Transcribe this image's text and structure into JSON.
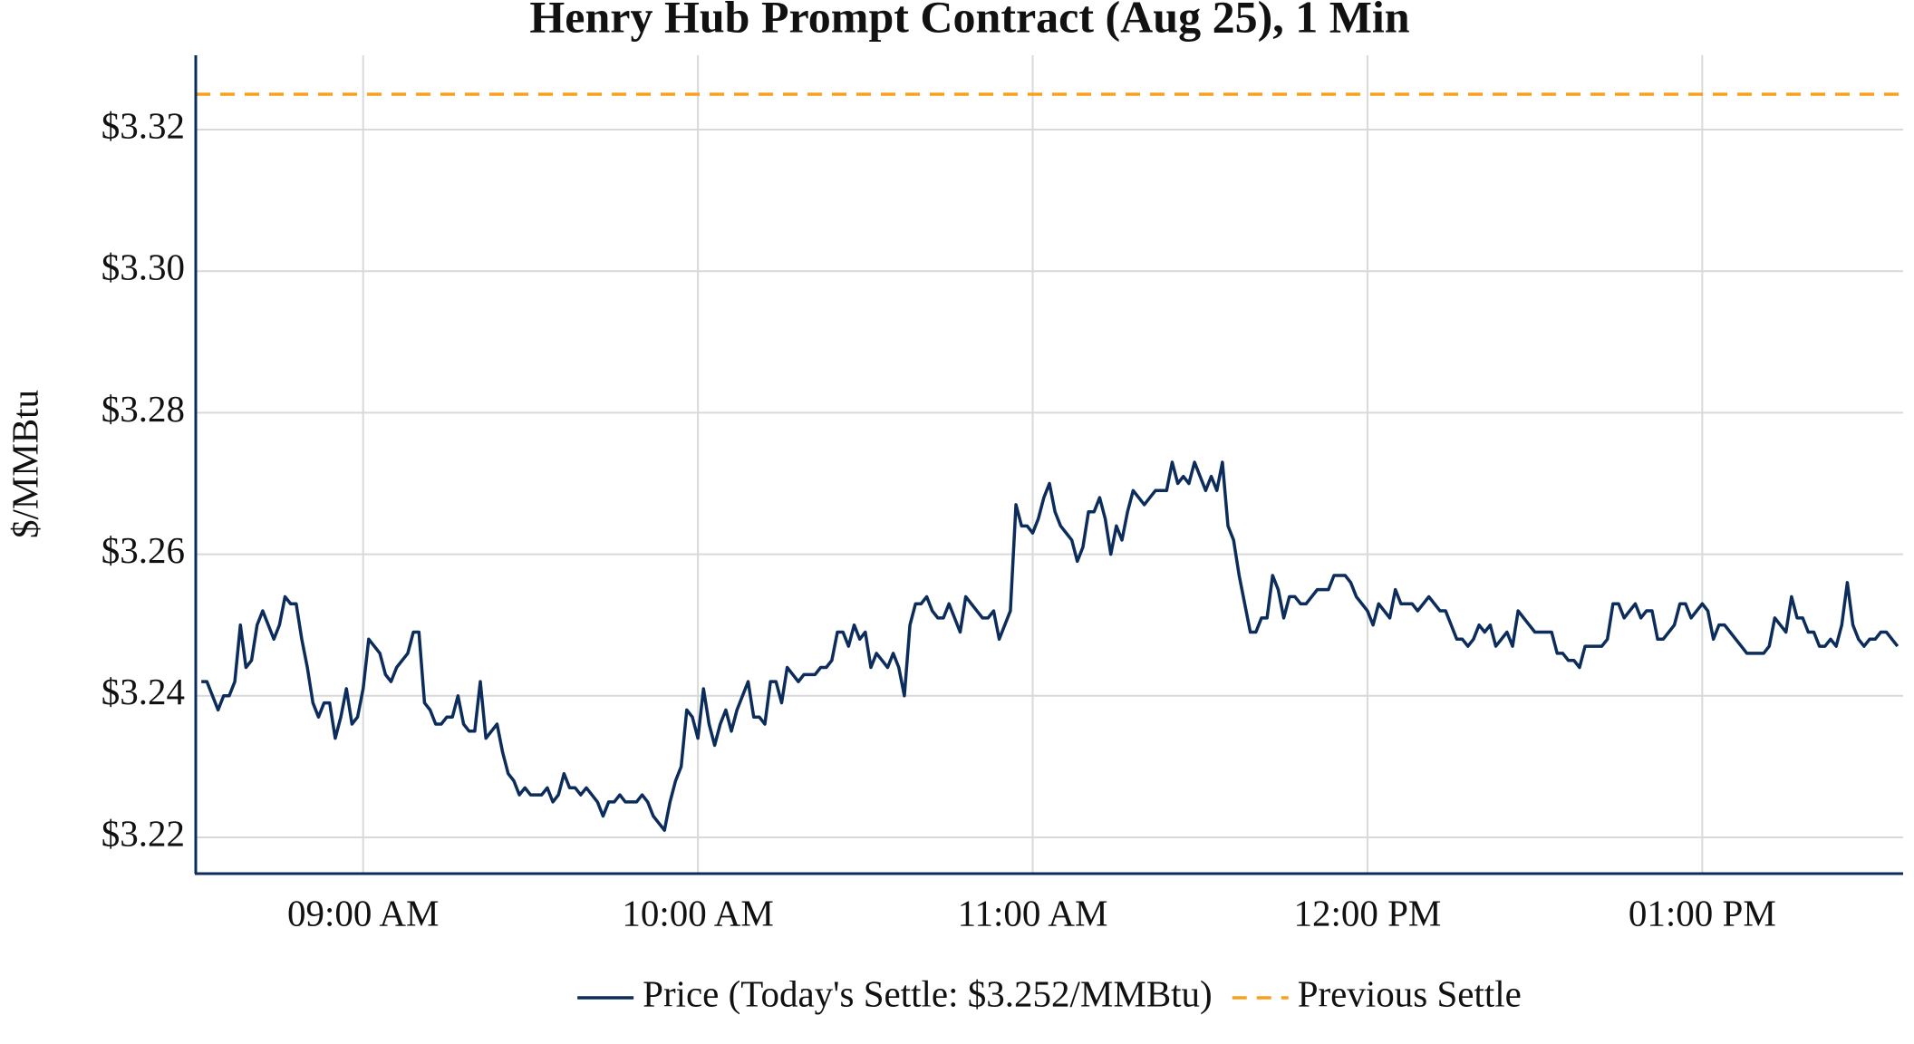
{
  "chart_data": {
    "type": "line",
    "title": "Henry Hub Prompt Contract (Aug 25), 1 Min",
    "y_label": "$/MMBtu",
    "grid": true,
    "ylim": [
      3.215,
      3.3305
    ],
    "yticks": [
      {
        "value": 3.22,
        "label": "$3.22"
      },
      {
        "value": 3.24,
        "label": "$3.24"
      },
      {
        "value": 3.26,
        "label": "$3.26"
      },
      {
        "value": 3.28,
        "label": "$3.28"
      },
      {
        "value": 3.3,
        "label": "$3.30"
      },
      {
        "value": 3.32,
        "label": "$3.32"
      }
    ],
    "xlim": [
      "08:30 AM",
      "01:36 PM"
    ],
    "xticks": [
      "09:00 AM",
      "10:00 AM",
      "11:00 AM",
      "12:00 PM",
      "01:00 PM"
    ],
    "x": [
      "08:31 AM",
      "08:32 AM",
      "08:33 AM",
      "08:34 AM",
      "08:35 AM",
      "08:36 AM",
      "08:37 AM",
      "08:38 AM",
      "08:39 AM",
      "08:40 AM",
      "08:41 AM",
      "08:42 AM",
      "08:43 AM",
      "08:44 AM",
      "08:45 AM",
      "08:46 AM",
      "08:47 AM",
      "08:48 AM",
      "08:49 AM",
      "08:50 AM",
      "08:51 AM",
      "08:52 AM",
      "08:53 AM",
      "08:54 AM",
      "08:55 AM",
      "08:56 AM",
      "08:57 AM",
      "08:58 AM",
      "08:59 AM",
      "09:00 AM",
      "09:01 AM",
      "09:02 AM",
      "09:03 AM",
      "09:04 AM",
      "09:05 AM",
      "09:06 AM",
      "09:07 AM",
      "09:08 AM",
      "09:09 AM",
      "09:10 AM",
      "09:11 AM",
      "09:12 AM",
      "09:13 AM",
      "09:14 AM",
      "09:15 AM",
      "09:16 AM",
      "09:17 AM",
      "09:18 AM",
      "09:19 AM",
      "09:20 AM",
      "09:21 AM",
      "09:22 AM",
      "09:23 AM",
      "09:24 AM",
      "09:25 AM",
      "09:26 AM",
      "09:27 AM",
      "09:28 AM",
      "09:29 AM",
      "09:30 AM",
      "09:31 AM",
      "09:32 AM",
      "09:33 AM",
      "09:34 AM",
      "09:35 AM",
      "09:36 AM",
      "09:37 AM",
      "09:38 AM",
      "09:39 AM",
      "09:40 AM",
      "09:41 AM",
      "09:42 AM",
      "09:43 AM",
      "09:44 AM",
      "09:45 AM",
      "09:46 AM",
      "09:47 AM",
      "09:48 AM",
      "09:49 AM",
      "09:50 AM",
      "09:51 AM",
      "09:52 AM",
      "09:53 AM",
      "09:54 AM",
      "09:55 AM",
      "09:56 AM",
      "09:57 AM",
      "09:58 AM",
      "09:59 AM",
      "10:00 AM",
      "10:01 AM",
      "10:02 AM",
      "10:03 AM",
      "10:04 AM",
      "10:05 AM",
      "10:06 AM",
      "10:07 AM",
      "10:08 AM",
      "10:09 AM",
      "10:10 AM",
      "10:11 AM",
      "10:12 AM",
      "10:13 AM",
      "10:14 AM",
      "10:15 AM",
      "10:16 AM",
      "10:17 AM",
      "10:18 AM",
      "10:19 AM",
      "10:20 AM",
      "10:21 AM",
      "10:22 AM",
      "10:23 AM",
      "10:24 AM",
      "10:25 AM",
      "10:26 AM",
      "10:27 AM",
      "10:28 AM",
      "10:29 AM",
      "10:30 AM",
      "10:31 AM",
      "10:32 AM",
      "10:33 AM",
      "10:34 AM",
      "10:35 AM",
      "10:36 AM",
      "10:37 AM",
      "10:38 AM",
      "10:39 AM",
      "10:40 AM",
      "10:41 AM",
      "10:42 AM",
      "10:43 AM",
      "10:44 AM",
      "10:45 AM",
      "10:46 AM",
      "10:47 AM",
      "10:48 AM",
      "10:49 AM",
      "10:50 AM",
      "10:51 AM",
      "10:52 AM",
      "10:53 AM",
      "10:54 AM",
      "10:55 AM",
      "10:56 AM",
      "10:57 AM",
      "10:58 AM",
      "10:59 AM",
      "11:00 AM",
      "11:01 AM",
      "11:02 AM",
      "11:03 AM",
      "11:04 AM",
      "11:05 AM",
      "11:06 AM",
      "11:07 AM",
      "11:08 AM",
      "11:09 AM",
      "11:10 AM",
      "11:11 AM",
      "11:12 AM",
      "11:13 AM",
      "11:14 AM",
      "11:15 AM",
      "11:16 AM",
      "11:17 AM",
      "11:18 AM",
      "11:19 AM",
      "11:20 AM",
      "11:21 AM",
      "11:22 AM",
      "11:23 AM",
      "11:24 AM",
      "11:25 AM",
      "11:26 AM",
      "11:27 AM",
      "11:28 AM",
      "11:29 AM",
      "11:30 AM",
      "11:31 AM",
      "11:32 AM",
      "11:33 AM",
      "11:34 AM",
      "11:35 AM",
      "11:36 AM",
      "11:37 AM",
      "11:38 AM",
      "11:39 AM",
      "11:40 AM",
      "11:41 AM",
      "11:42 AM",
      "11:43 AM",
      "11:44 AM",
      "11:45 AM",
      "11:46 AM",
      "11:47 AM",
      "11:48 AM",
      "11:49 AM",
      "11:50 AM",
      "11:51 AM",
      "11:52 AM",
      "11:53 AM",
      "11:54 AM",
      "11:55 AM",
      "11:56 AM",
      "11:57 AM",
      "11:58 AM",
      "11:59 AM",
      "12:00 PM",
      "12:01 PM",
      "12:02 PM",
      "12:03 PM",
      "12:04 PM",
      "12:05 PM",
      "12:06 PM",
      "12:07 PM",
      "12:08 PM",
      "12:09 PM",
      "12:10 PM",
      "12:11 PM",
      "12:12 PM",
      "12:13 PM",
      "12:14 PM",
      "12:15 PM",
      "12:16 PM",
      "12:17 PM",
      "12:18 PM",
      "12:19 PM",
      "12:20 PM",
      "12:21 PM",
      "12:22 PM",
      "12:23 PM",
      "12:24 PM",
      "12:25 PM",
      "12:26 PM",
      "12:27 PM",
      "12:28 PM",
      "12:29 PM",
      "12:30 PM",
      "12:31 PM",
      "12:32 PM",
      "12:33 PM",
      "12:34 PM",
      "12:35 PM",
      "12:36 PM",
      "12:37 PM",
      "12:38 PM",
      "12:39 PM",
      "12:40 PM",
      "12:41 PM",
      "12:42 PM",
      "12:43 PM",
      "12:44 PM",
      "12:45 PM",
      "12:46 PM",
      "12:47 PM",
      "12:48 PM",
      "12:49 PM",
      "12:50 PM",
      "12:51 PM",
      "12:52 PM",
      "12:53 PM",
      "12:54 PM",
      "12:55 PM",
      "12:56 PM",
      "12:57 PM",
      "12:58 PM",
      "12:59 PM",
      "01:00 PM",
      "01:01 PM",
      "01:02 PM",
      "01:03 PM",
      "01:04 PM",
      "01:05 PM",
      "01:06 PM",
      "01:07 PM",
      "01:08 PM",
      "01:09 PM",
      "01:10 PM",
      "01:11 PM",
      "01:12 PM",
      "01:13 PM",
      "01:14 PM",
      "01:15 PM",
      "01:16 PM",
      "01:17 PM",
      "01:18 PM",
      "01:19 PM",
      "01:20 PM",
      "01:21 PM",
      "01:22 PM",
      "01:23 PM",
      "01:24 PM",
      "01:25 PM",
      "01:26 PM",
      "01:27 PM",
      "01:28 PM",
      "01:29 PM",
      "01:30 PM",
      "01:31 PM",
      "01:32 PM",
      "01:33 PM",
      "01:34 PM",
      "01:35 PM"
    ],
    "series": [
      {
        "name": "Price (Today's Settle: $3.252/MMBtu)",
        "color": "#0c2c5c",
        "values": [
          3.242,
          3.242,
          3.24,
          3.238,
          3.24,
          3.24,
          3.242,
          3.25,
          3.244,
          3.245,
          3.25,
          3.252,
          3.25,
          3.248,
          3.25,
          3.254,
          3.253,
          3.253,
          3.248,
          3.244,
          3.239,
          3.237,
          3.239,
          3.239,
          3.234,
          3.237,
          3.241,
          3.236,
          3.237,
          3.241,
          3.248,
          3.247,
          3.246,
          3.243,
          3.242,
          3.244,
          3.245,
          3.246,
          3.249,
          3.249,
          3.239,
          3.238,
          3.236,
          3.236,
          3.237,
          3.237,
          3.24,
          3.236,
          3.235,
          3.235,
          3.242,
          3.234,
          3.235,
          3.236,
          3.232,
          3.229,
          3.228,
          3.226,
          3.227,
          3.226,
          3.226,
          3.226,
          3.227,
          3.225,
          3.226,
          3.229,
          3.227,
          3.227,
          3.226,
          3.227,
          3.226,
          3.225,
          3.223,
          3.225,
          3.225,
          3.226,
          3.225,
          3.225,
          3.225,
          3.226,
          3.225,
          3.223,
          3.222,
          3.221,
          3.225,
          3.228,
          3.23,
          3.238,
          3.237,
          3.234,
          3.241,
          3.236,
          3.233,
          3.236,
          3.238,
          3.235,
          3.238,
          3.24,
          3.242,
          3.237,
          3.237,
          3.236,
          3.242,
          3.242,
          3.239,
          3.244,
          3.243,
          3.242,
          3.243,
          3.243,
          3.243,
          3.244,
          3.244,
          3.245,
          3.249,
          3.249,
          3.247,
          3.25,
          3.248,
          3.249,
          3.244,
          3.246,
          3.245,
          3.244,
          3.246,
          3.244,
          3.24,
          3.25,
          3.253,
          3.253,
          3.254,
          3.252,
          3.251,
          3.251,
          3.253,
          3.251,
          3.249,
          3.254,
          3.253,
          3.252,
          3.251,
          3.251,
          3.252,
          3.248,
          3.25,
          3.252,
          3.267,
          3.264,
          3.264,
          3.263,
          3.265,
          3.268,
          3.27,
          3.266,
          3.264,
          3.263,
          3.262,
          3.259,
          3.261,
          3.266,
          3.266,
          3.268,
          3.265,
          3.26,
          3.264,
          3.262,
          3.266,
          3.269,
          3.268,
          3.267,
          3.268,
          3.269,
          3.269,
          3.269,
          3.273,
          3.27,
          3.271,
          3.27,
          3.273,
          3.271,
          3.269,
          3.271,
          3.269,
          3.273,
          3.264,
          3.262,
          3.257,
          3.253,
          3.249,
          3.249,
          3.251,
          3.251,
          3.257,
          3.255,
          3.251,
          3.254,
          3.254,
          3.253,
          3.253,
          3.254,
          3.255,
          3.255,
          3.255,
          3.257,
          3.257,
          3.257,
          3.256,
          3.254,
          3.253,
          3.252,
          3.25,
          3.253,
          3.252,
          3.251,
          3.255,
          3.253,
          3.253,
          3.253,
          3.252,
          3.253,
          3.254,
          3.253,
          3.252,
          3.252,
          3.25,
          3.248,
          3.248,
          3.247,
          3.248,
          3.25,
          3.249,
          3.25,
          3.247,
          3.248,
          3.249,
          3.247,
          3.252,
          3.251,
          3.25,
          3.249,
          3.249,
          3.249,
          3.249,
          3.246,
          3.246,
          3.245,
          3.245,
          3.244,
          3.247,
          3.247,
          3.247,
          3.247,
          3.248,
          3.253,
          3.253,
          3.251,
          3.252,
          3.253,
          3.251,
          3.252,
          3.252,
          3.248,
          3.248,
          3.249,
          3.25,
          3.253,
          3.253,
          3.251,
          3.252,
          3.253,
          3.252,
          3.248,
          3.25,
          3.25,
          3.249,
          3.248,
          3.247,
          3.246,
          3.246,
          3.246,
          3.246,
          3.247,
          3.251,
          3.25,
          3.249,
          3.254,
          3.251,
          3.251,
          3.249,
          3.249,
          3.247,
          3.247,
          3.248,
          3.247,
          3.25,
          3.256,
          3.25,
          3.248,
          3.247,
          3.248,
          3.248,
          3.249,
          3.249,
          3.248,
          3.247
        ]
      }
    ],
    "reference_lines": [
      {
        "name": "Previous Settle",
        "value": 3.325,
        "color": "#f9a01b",
        "dashed": true
      }
    ]
  }
}
